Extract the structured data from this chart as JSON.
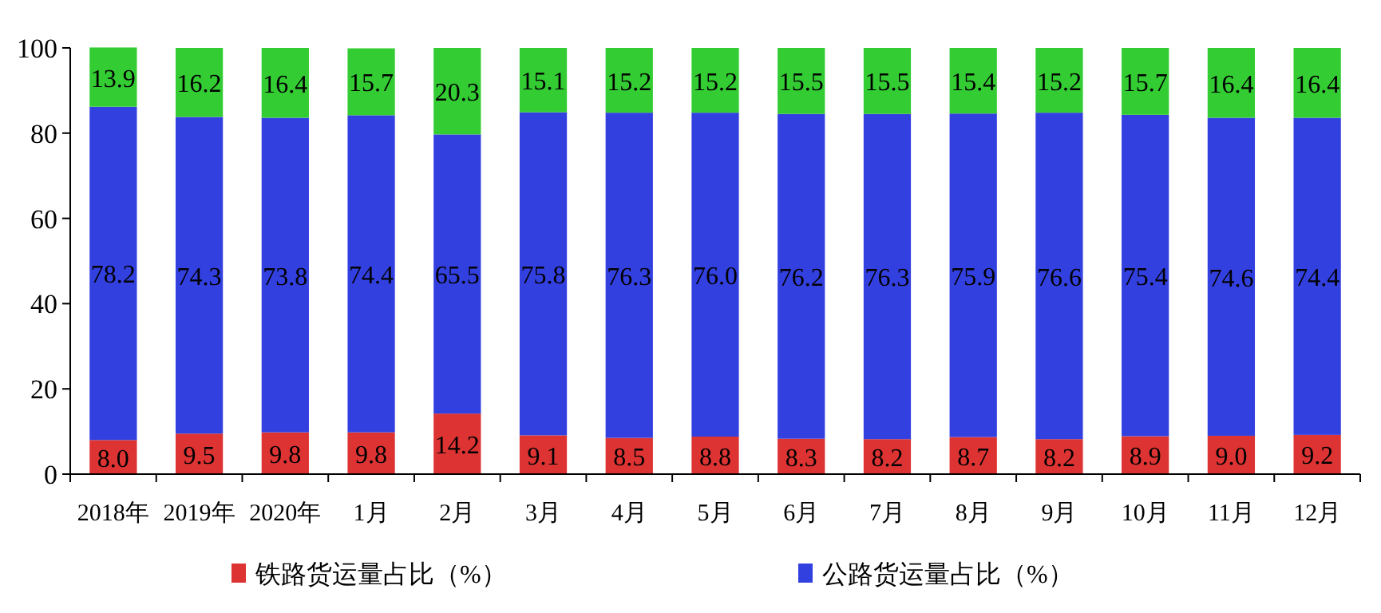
{
  "chart_data": {
    "type": "bar",
    "stacked": true,
    "legend": "bottom",
    "grid": false,
    "categories": [
      "2018年",
      "2019年",
      "2020年",
      "1月",
      "2月",
      "3月",
      "4月",
      "5月",
      "6月",
      "7月",
      "8月",
      "9月",
      "10月",
      "11月",
      "12月"
    ],
    "series": [
      {
        "name": "铁路货运量占比（%）",
        "color": "#dd3333",
        "values": [
          8.0,
          9.5,
          9.8,
          9.8,
          14.2,
          9.1,
          8.5,
          8.8,
          8.3,
          8.2,
          8.7,
          8.2,
          8.9,
          9.0,
          9.2
        ],
        "value_labels": [
          "8.0",
          "9.5",
          "9.8",
          "9.8",
          "14.2",
          "9.1",
          "8.5",
          "8.8",
          "8.3",
          "8.2",
          "8.7",
          "8.2",
          "8.9",
          "9.0",
          "9.2"
        ]
      },
      {
        "name": "公路货运量占比（%）",
        "color": "#3340e0",
        "values": [
          78.2,
          74.3,
          73.8,
          74.4,
          65.5,
          75.8,
          76.3,
          76.0,
          76.2,
          76.3,
          75.9,
          76.6,
          75.4,
          74.6,
          74.4
        ],
        "value_labels": [
          "78.2",
          "74.3",
          "73.8",
          "74.4",
          "65.5",
          "75.8",
          "76.3",
          "76.0",
          "76.2",
          "76.3",
          "75.9",
          "76.6",
          "75.4",
          "74.6",
          "74.4"
        ]
      },
      {
        "color": "#33cc33",
        "values": [
          13.9,
          16.2,
          16.4,
          15.7,
          20.3,
          15.1,
          15.2,
          15.2,
          15.5,
          15.5,
          15.4,
          15.2,
          15.7,
          16.4,
          16.4
        ],
        "value_labels": [
          "13.9",
          "16.2",
          "16.4",
          "15.7",
          "20.3",
          "15.1",
          "15.2",
          "15.2",
          "15.5",
          "15.5",
          "15.4",
          "15.2",
          "15.7",
          "16.4",
          "16.4"
        ]
      }
    ],
    "ylim": [
      0,
      100
    ],
    "yticks": [
      0,
      20,
      40,
      60,
      80,
      100
    ]
  }
}
